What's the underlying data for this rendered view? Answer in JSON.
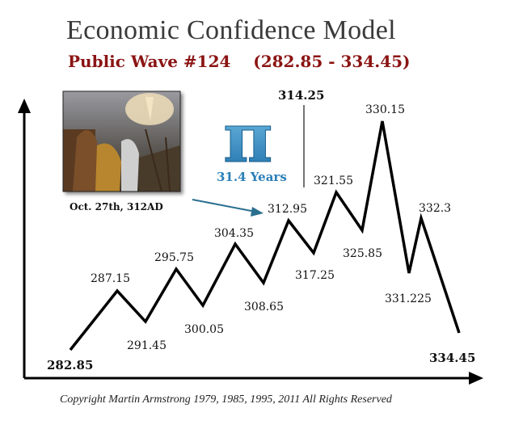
{
  "chart_data": {
    "type": "line",
    "title": "Economic Confidence Model",
    "subtitle": "Public Wave #124    (282.85 - 334.45)",
    "points": [
      {
        "x": 282.85,
        "label": "282.85"
      },
      {
        "x": 287.15,
        "label": "287.15"
      },
      {
        "x": 291.45,
        "label": "291.45"
      },
      {
        "x": 295.75,
        "label": "295.75"
      },
      {
        "x": 300.05,
        "label": "300.05"
      },
      {
        "x": 304.35,
        "label": "304.35"
      },
      {
        "x": 308.65,
        "label": "308.65"
      },
      {
        "x": 312.95,
        "label": "312.95"
      },
      {
        "x": 317.25,
        "label": "317.25"
      },
      {
        "x": 321.55,
        "label": "321.55"
      },
      {
        "x": 325.85,
        "label": "325.85"
      },
      {
        "x": 330.15,
        "label": "330.15"
      },
      {
        "x": 331.225,
        "label": "331.225"
      },
      {
        "x": 332.3,
        "label": "332.3"
      },
      {
        "x": 334.45,
        "label": "334.45"
      }
    ],
    "peak_marker": {
      "x": 314.25,
      "label": "314.25"
    },
    "pi_symbol": "π",
    "pi_caption": "31.4 Years",
    "image_caption": "Oct. 27th, 312AD",
    "copyright": "Copyright Martin Armstrong 1979, 1985, 1995, 2011 All Rights Reserved",
    "colors": {
      "line": "#000000",
      "subtitle": "#8b1414",
      "pi": "#2a7fb8",
      "arrow": "#2a6f8f"
    }
  }
}
